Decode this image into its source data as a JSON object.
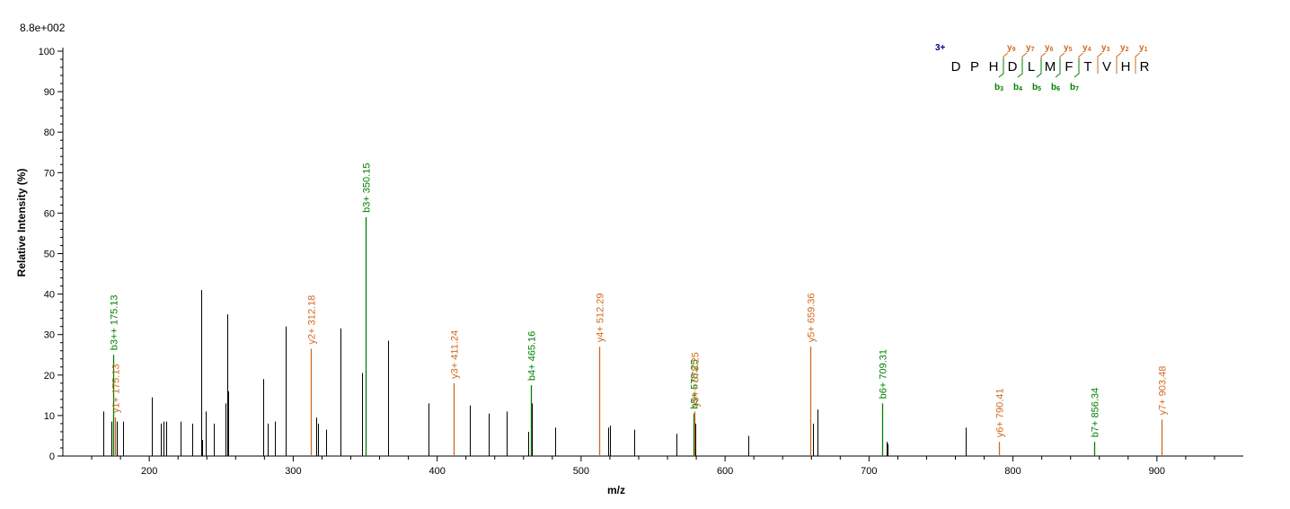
{
  "scale": "8.8e+002",
  "colors": {
    "b": "#008000",
    "y": "#d2691e",
    "other": "#000000",
    "charge": "#00008b"
  },
  "chart_data": {
    "type": "bar",
    "subtype": "mass-spectrum",
    "xlabel": "m/z",
    "ylabel": "Relative   Intensity (%)",
    "xlim": [
      140,
      960
    ],
    "ylim": [
      0,
      100
    ],
    "xticks": [
      200,
      300,
      400,
      500,
      600,
      700,
      800,
      900
    ],
    "yticks": [
      0,
      10,
      20,
      30,
      40,
      50,
      60,
      70,
      80,
      90,
      100
    ],
    "peaks": [
      {
        "mz": 168,
        "int": 11
      },
      {
        "mz": 174,
        "int": 8.5
      },
      {
        "mz": 175.13,
        "int": 25,
        "type": "b",
        "label": "b3++ 175.13"
      },
      {
        "mz": 176.5,
        "int": 9.5,
        "type": "y",
        "label": "y1+ 175.13"
      },
      {
        "mz": 177.5,
        "int": 8.5
      },
      {
        "mz": 182,
        "int": 8.5
      },
      {
        "mz": 202,
        "int": 14.5
      },
      {
        "mz": 208,
        "int": 8
      },
      {
        "mz": 210,
        "int": 8.5
      },
      {
        "mz": 212,
        "int": 8.5
      },
      {
        "mz": 222,
        "int": 8.5
      },
      {
        "mz": 230,
        "int": 8
      },
      {
        "mz": 236,
        "int": 41
      },
      {
        "mz": 237,
        "int": 4
      },
      {
        "mz": 239,
        "int": 11
      },
      {
        "mz": 245,
        "int": 8
      },
      {
        "mz": 253,
        "int": 13
      },
      {
        "mz": 254,
        "int": 35
      },
      {
        "mz": 255,
        "int": 16
      },
      {
        "mz": 279,
        "int": 19
      },
      {
        "mz": 282,
        "int": 8
      },
      {
        "mz": 287,
        "int": 8.5
      },
      {
        "mz": 295,
        "int": 32
      },
      {
        "mz": 312.18,
        "int": 26.5,
        "type": "y",
        "label": "y2+ 312.18"
      },
      {
        "mz": 316,
        "int": 9.5
      },
      {
        "mz": 317,
        "int": 8
      },
      {
        "mz": 323,
        "int": 6.5
      },
      {
        "mz": 333,
        "int": 31.5
      },
      {
        "mz": 348,
        "int": 20.5
      },
      {
        "mz": 350.15,
        "int": 59,
        "type": "b",
        "label": "b3+ 350.15"
      },
      {
        "mz": 366,
        "int": 28.5
      },
      {
        "mz": 394,
        "int": 13
      },
      {
        "mz": 411.24,
        "int": 18,
        "type": "y",
        "label": "y3+ 411.24"
      },
      {
        "mz": 423,
        "int": 12.5
      },
      {
        "mz": 436,
        "int": 10.5
      },
      {
        "mz": 448,
        "int": 11
      },
      {
        "mz": 463,
        "int": 6
      },
      {
        "mz": 465.16,
        "int": 17.5,
        "type": "b",
        "label": "b4+ 465.16"
      },
      {
        "mz": 466,
        "int": 13
      },
      {
        "mz": 482,
        "int": 7
      },
      {
        "mz": 512.29,
        "int": 27,
        "type": "y",
        "label": "y4+ 512.29"
      },
      {
        "mz": 519,
        "int": 7
      },
      {
        "mz": 520,
        "int": 7.5
      },
      {
        "mz": 537,
        "int": 6.5
      },
      {
        "mz": 566,
        "int": 5.5
      },
      {
        "mz": 578.25,
        "int": 10.5,
        "type": "b",
        "label": "b5+ 578.25"
      },
      {
        "mz": 578.6,
        "int": 11,
        "type": "y",
        "label": "y9++ 578.25"
      },
      {
        "mz": 579.5,
        "int": 8
      },
      {
        "mz": 616,
        "int": 5
      },
      {
        "mz": 659.36,
        "int": 27,
        "type": "y",
        "label": "y5+ 659.36"
      },
      {
        "mz": 661,
        "int": 8
      },
      {
        "mz": 664,
        "int": 11.5
      },
      {
        "mz": 709.31,
        "int": 13,
        "type": "b",
        "label": "b6+ 709.31"
      },
      {
        "mz": 712,
        "int": 3.5
      },
      {
        "mz": 713,
        "int": 3
      },
      {
        "mz": 767,
        "int": 7
      },
      {
        "mz": 790.41,
        "int": 3.5,
        "type": "y",
        "label": "y6+ 790.41"
      },
      {
        "mz": 856.34,
        "int": 3.5,
        "type": "b",
        "label": "b7+ 856.34"
      },
      {
        "mz": 903.48,
        "int": 9,
        "type": "y",
        "label": "y7+ 903.48"
      }
    ]
  },
  "sequence": {
    "charge": "3+",
    "residues": [
      "D",
      "P",
      "H",
      "D",
      "L",
      "M",
      "F",
      "T",
      "V",
      "H",
      "R"
    ],
    "y_ions": [
      {
        "label": "y",
        "sub": "9"
      },
      {
        "label": "y",
        "sub": "7"
      },
      {
        "label": "y",
        "sub": "6"
      },
      {
        "label": "y",
        "sub": "5"
      },
      {
        "label": "y",
        "sub": "4"
      },
      {
        "label": "y",
        "sub": "3"
      },
      {
        "label": "y",
        "sub": "2"
      },
      {
        "label": "y",
        "sub": "1"
      }
    ],
    "b_ions": [
      {
        "label": "b",
        "sub": "3"
      },
      {
        "label": "b",
        "sub": "4"
      },
      {
        "label": "b",
        "sub": "5"
      },
      {
        "label": "b",
        "sub": "6"
      },
      {
        "label": "b",
        "sub": "7"
      }
    ]
  }
}
